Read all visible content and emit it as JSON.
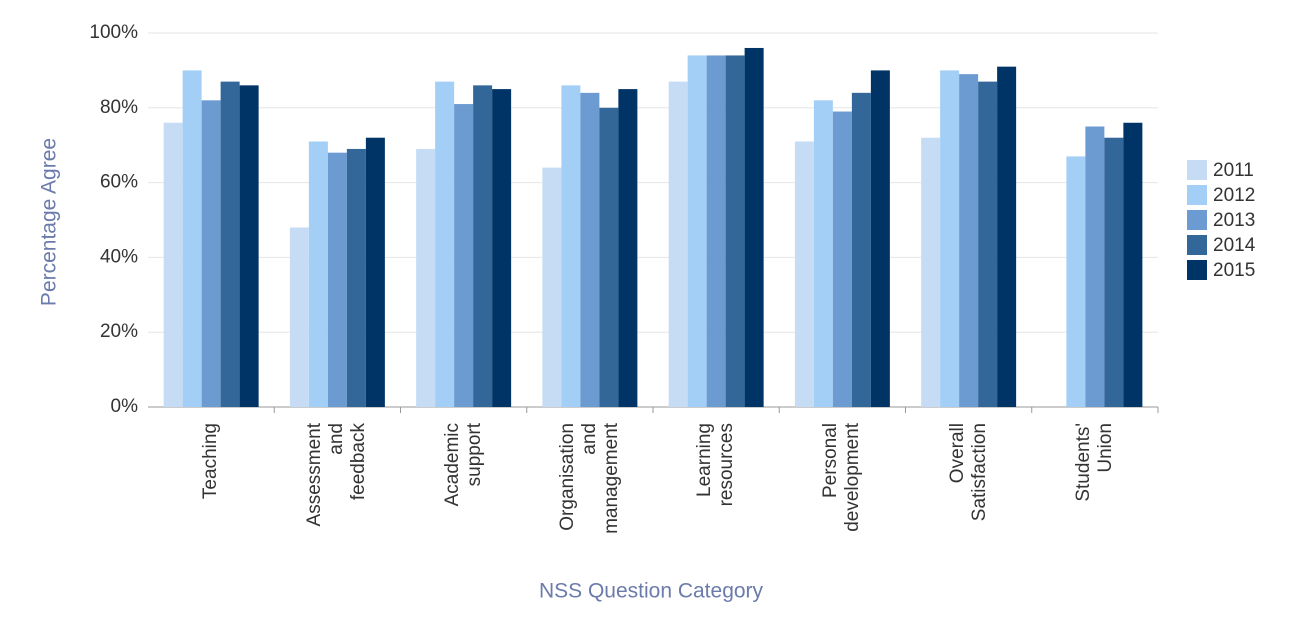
{
  "chart_data": {
    "type": "bar",
    "x_label": "NSS Question Category",
    "y_label": "Percentage Agree",
    "categories": [
      "Teaching",
      "Assessment\nand\nfeedback",
      "Academic\nsupport",
      "Organisation\nand\nmanagement",
      "Learning\nresources",
      "Personal\ndevelopment",
      "Overall\nSatisfaction",
      "Students'\nUnion"
    ],
    "series": [
      {
        "name": "2011",
        "color": "#c6dcf5",
        "values": [
          76,
          48,
          69,
          64,
          87,
          71,
          72,
          null
        ]
      },
      {
        "name": "2012",
        "color": "#a3cff7",
        "values": [
          90,
          71,
          87,
          86,
          94,
          82,
          90,
          67
        ]
      },
      {
        "name": "2013",
        "color": "#6b9bd1",
        "values": [
          82,
          68,
          81,
          84,
          94,
          79,
          89,
          75
        ]
      },
      {
        "name": "2014",
        "color": "#336699",
        "values": [
          87,
          69,
          86,
          80,
          94,
          84,
          87,
          72
        ]
      },
      {
        "name": "2015",
        "color": "#003366",
        "values": [
          86,
          72,
          85,
          85,
          96,
          90,
          91,
          76
        ]
      }
    ],
    "ylim": [
      0,
      100
    ],
    "yticks": [
      {
        "value": 0,
        "label": "0%"
      },
      {
        "value": 20,
        "label": "20%"
      },
      {
        "value": 40,
        "label": "40%"
      },
      {
        "value": 60,
        "label": "60%"
      },
      {
        "value": 80,
        "label": "80%"
      },
      {
        "value": 100,
        "label": "100%"
      }
    ],
    "grid": true,
    "legend": "right"
  }
}
